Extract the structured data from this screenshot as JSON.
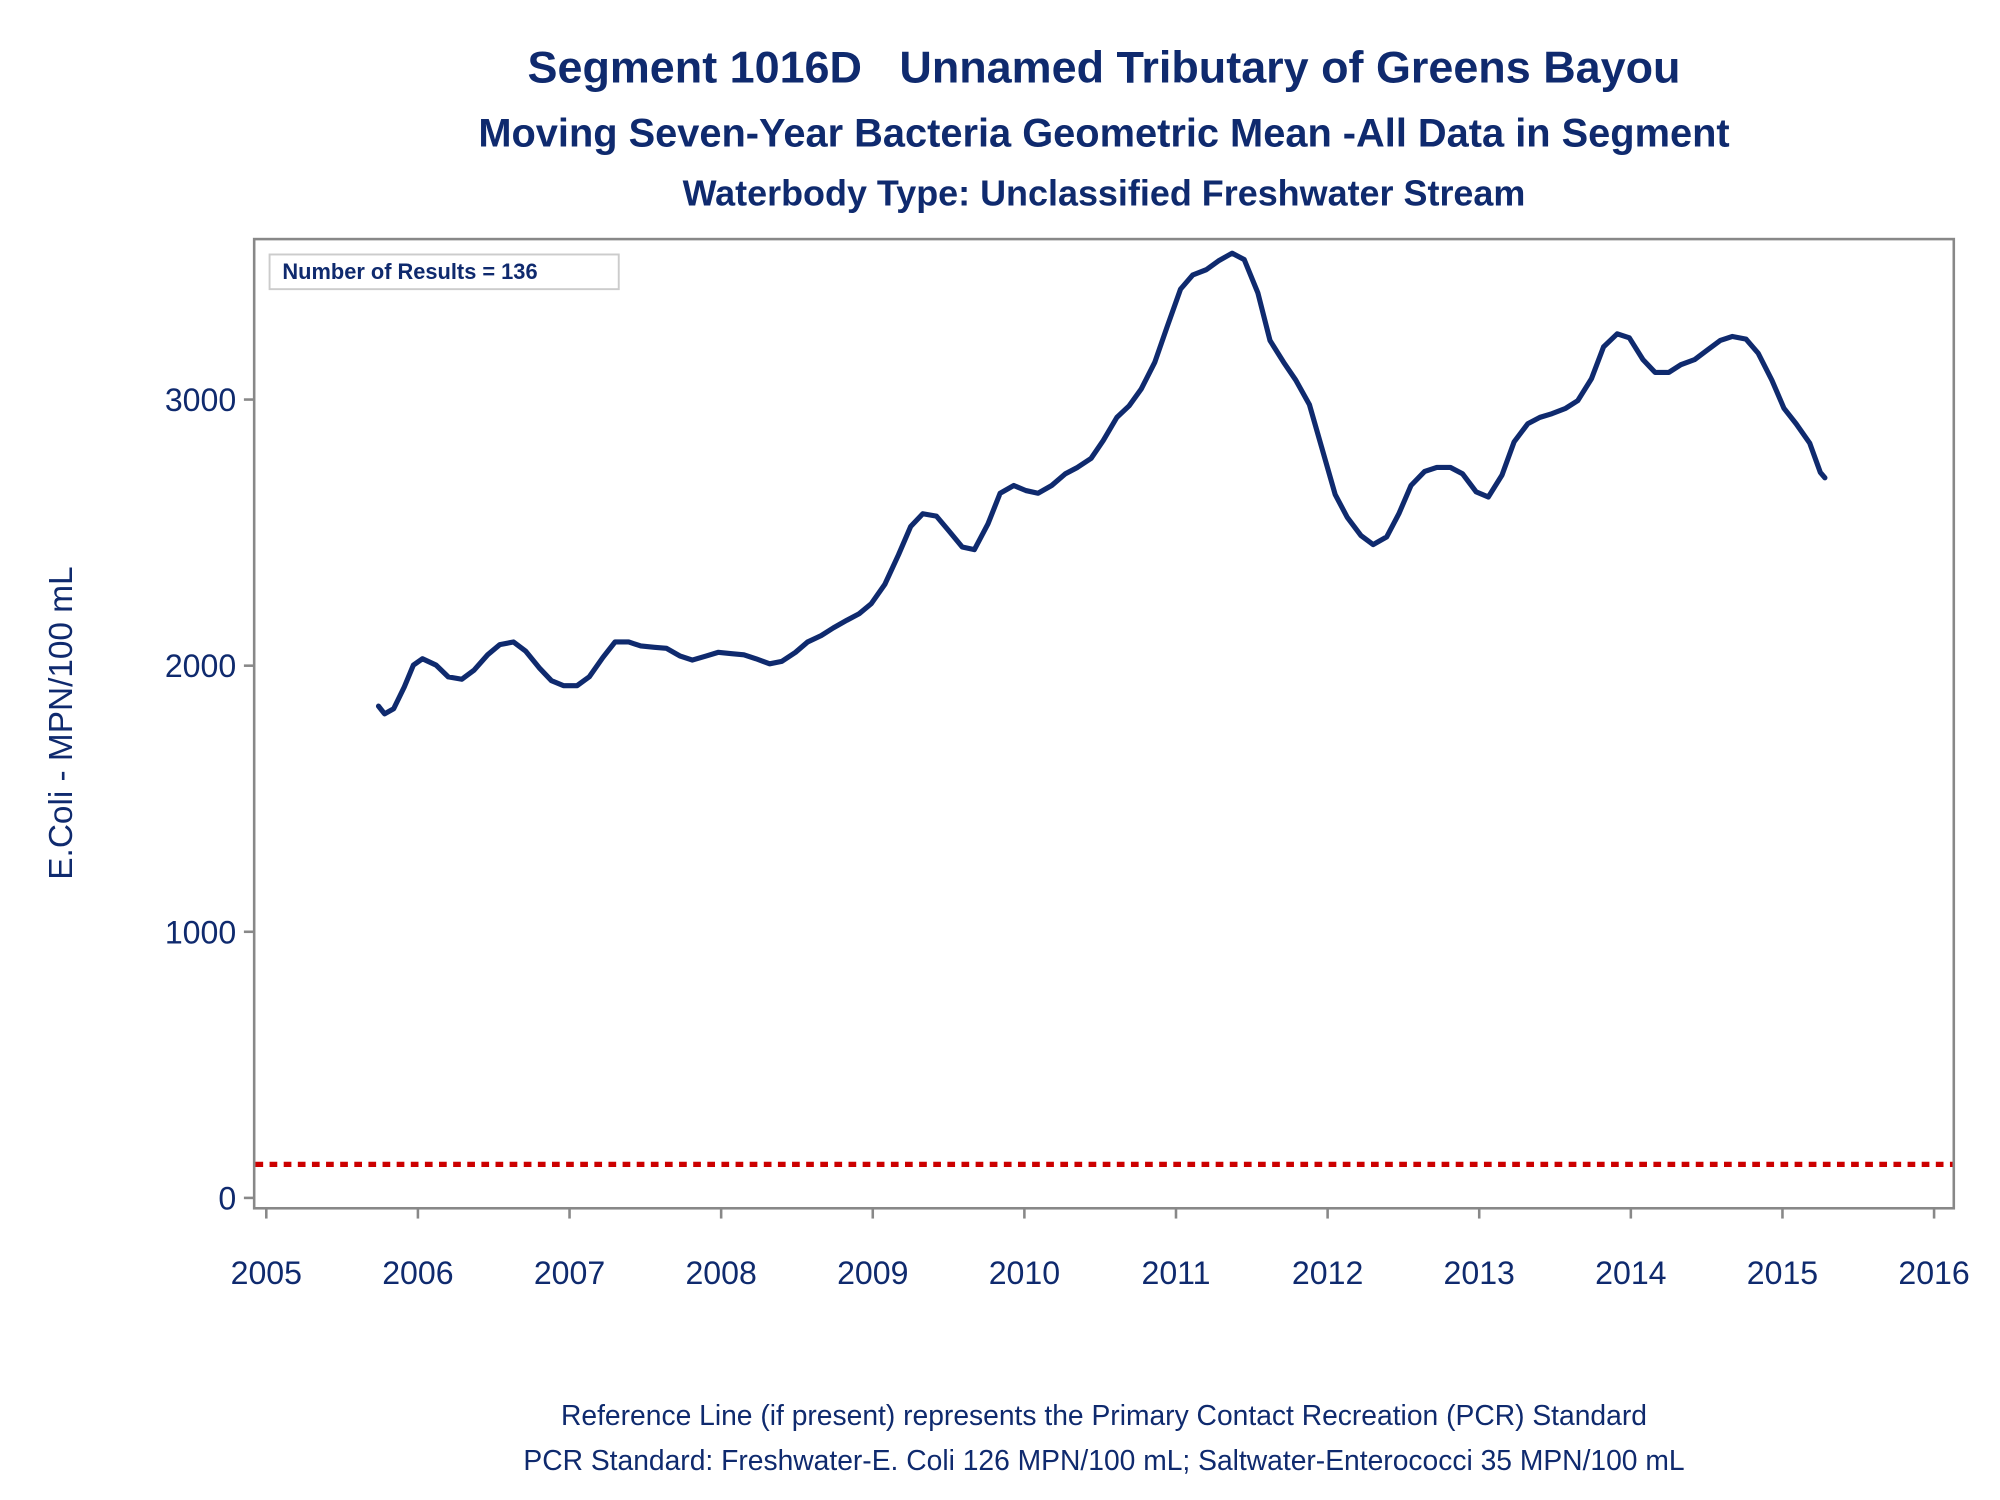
{
  "chart_data": {
    "type": "line",
    "title": "Segment 1016D   Unnamed Tributary of Greens Bayou",
    "subtitles": [
      "Moving Seven-Year Bacteria Geometric Mean -All Data in Segment",
      "Waterbody Type: Unclassified Freshwater Stream"
    ],
    "y_label": "E.Coli - MPN/100 mL",
    "annotation": "Number of Results = 136",
    "footnotes": [
      "Reference Line (if present) represents the Primary Contact Recreation (PCR) Standard",
      "PCR Standard: Freshwater-E. Coli 126 MPN/100 mL; Saltwater-Enterococci 35 MPN/100 mL"
    ],
    "color": "#0f2a6e",
    "reference_line": {
      "value": 126,
      "color": "#cc0000"
    },
    "xlim": [
      2004.92,
      2016.13
    ],
    "ylim": [
      -39,
      3603
    ],
    "xticks": [
      2005,
      2006,
      2007,
      2008,
      2009,
      2010,
      2011,
      2012,
      2013,
      2014,
      2015,
      2016
    ],
    "yticks": [
      0,
      1000,
      2000,
      3000
    ],
    "x": [
      2005.74,
      2005.78,
      2005.84,
      2005.91,
      2005.97,
      2006.03,
      2006.12,
      2006.2,
      2006.29,
      2006.37,
      2006.46,
      2006.54,
      2006.63,
      2006.71,
      2006.8,
      2006.88,
      2006.96,
      2007.05,
      2007.13,
      2007.22,
      2007.3,
      2007.39,
      2007.47,
      2007.56,
      2007.64,
      2007.73,
      2007.81,
      2007.9,
      2007.98,
      2008.07,
      2008.15,
      2008.23,
      2008.32,
      2008.4,
      2008.49,
      2008.57,
      2008.66,
      2008.74,
      2008.83,
      2008.91,
      2008.99,
      2009.08,
      2009.17,
      2009.25,
      2009.33,
      2009.42,
      2009.5,
      2009.59,
      2009.67,
      2009.76,
      2009.84,
      2009.93,
      2010.01,
      2010.09,
      2010.18,
      2010.27,
      2010.35,
      2010.44,
      2010.52,
      2010.61,
      2010.69,
      2010.77,
      2010.86,
      2010.94,
      2011.03,
      2011.11,
      2011.2,
      2011.28,
      2011.37,
      2011.45,
      2011.54,
      2011.62,
      2011.71,
      2011.79,
      2011.88,
      2011.96,
      2012.05,
      2012.13,
      2012.22,
      2012.3,
      2012.39,
      2012.47,
      2012.55,
      2012.64,
      2012.72,
      2012.81,
      2012.89,
      2012.98,
      2013.06,
      2013.15,
      2013.23,
      2013.32,
      2013.4,
      2013.48,
      2013.57,
      2013.65,
      2013.74,
      2013.82,
      2013.91,
      2013.99,
      2014.08,
      2014.16,
      2014.25,
      2014.33,
      2014.42,
      2014.5,
      2014.59,
      2014.67,
      2014.76,
      2014.84,
      2014.93,
      2015.01,
      2015.09,
      2015.18,
      2015.25,
      2015.28
    ],
    "values": [
      1848,
      1819,
      1838,
      1920,
      2002,
      2026,
      2002,
      1958,
      1949,
      1983,
      2041,
      2079,
      2089,
      2055,
      1992,
      1944,
      1925,
      1925,
      1958,
      2031,
      2089,
      2089,
      2074,
      2069,
      2065,
      2036,
      2021,
      2036,
      2050,
      2045,
      2041,
      2026,
      2007,
      2016,
      2050,
      2089,
      2113,
      2142,
      2171,
      2195,
      2233,
      2306,
      2417,
      2523,
      2571,
      2562,
      2508,
      2446,
      2436,
      2533,
      2648,
      2677,
      2658,
      2648,
      2677,
      2721,
      2745,
      2779,
      2846,
      2933,
      2976,
      3039,
      3140,
      3271,
      3415,
      3468,
      3488,
      3521,
      3550,
      3526,
      3401,
      3222,
      3140,
      3073,
      2981,
      2822,
      2643,
      2557,
      2489,
      2455,
      2484,
      2571,
      2677,
      2730,
      2745,
      2745,
      2721,
      2653,
      2634,
      2716,
      2841,
      2909,
      2933,
      2947,
      2967,
      2996,
      3078,
      3198,
      3247,
      3232,
      3150,
      3102,
      3102,
      3131,
      3150,
      3184,
      3222,
      3237,
      3227,
      3174,
      3073,
      2967,
      2909,
      2836,
      2726,
      2706
    ]
  }
}
